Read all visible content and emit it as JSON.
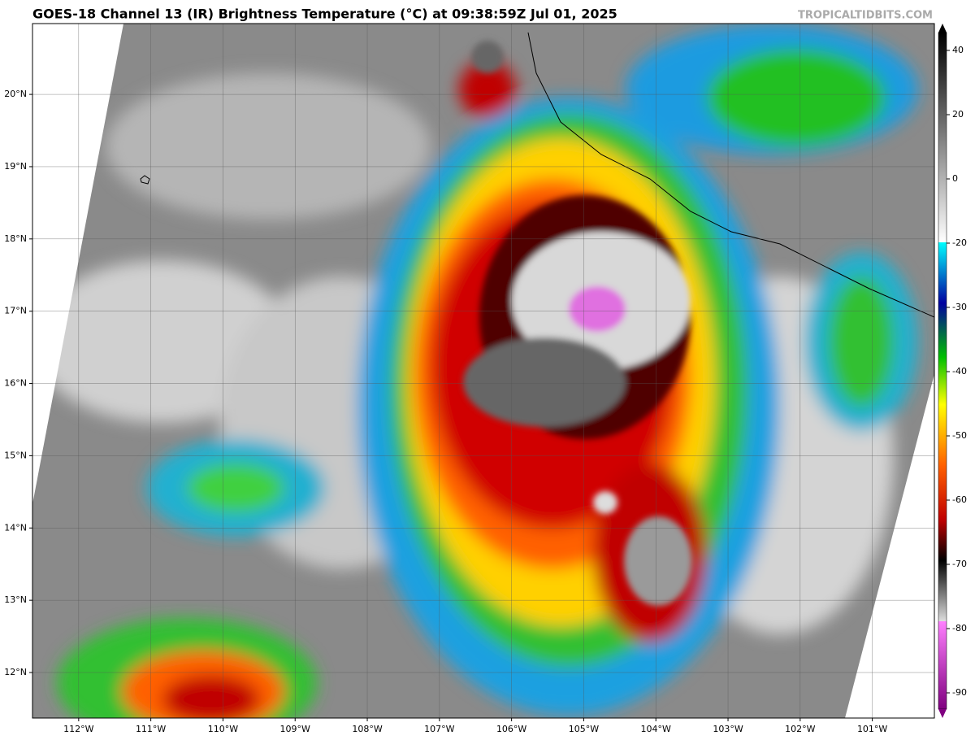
{
  "title": "GOES-18 Channel 13 (IR) Brightness Temperature (°C) at 09:38:59Z Jul 01, 2025",
  "watermark": "TROPICALTIDBITS.COM",
  "map": {
    "xlim": [
      -112.64,
      -100.14
    ],
    "ylim": [
      11.37,
      20.98
    ],
    "xticks": [
      {
        "value": -112,
        "label": "112°W"
      },
      {
        "value": -111,
        "label": "111°W"
      },
      {
        "value": -110,
        "label": "110°W"
      },
      {
        "value": -109,
        "label": "109°W"
      },
      {
        "value": -108,
        "label": "108°W"
      },
      {
        "value": -107,
        "label": "107°W"
      },
      {
        "value": -106,
        "label": "106°W"
      },
      {
        "value": -105,
        "label": "105°W"
      },
      {
        "value": -104,
        "label": "104°W"
      },
      {
        "value": -103,
        "label": "103°W"
      },
      {
        "value": -102,
        "label": "102°W"
      },
      {
        "value": -101,
        "label": "101°W"
      }
    ],
    "yticks": [
      {
        "value": 12,
        "label": "12°N"
      },
      {
        "value": 13,
        "label": "13°N"
      },
      {
        "value": 14,
        "label": "14°N"
      },
      {
        "value": 15,
        "label": "15°N"
      },
      {
        "value": 16,
        "label": "16°N"
      },
      {
        "value": 17,
        "label": "17°N"
      },
      {
        "value": 18,
        "label": "18°N"
      },
      {
        "value": 19,
        "label": "19°N"
      },
      {
        "value": 20,
        "label": "20°N"
      }
    ]
  },
  "colorbar": {
    "ticks": [
      40,
      20,
      0,
      -20,
      -30,
      -40,
      -50,
      -60,
      -70,
      -80,
      -90
    ]
  }
}
